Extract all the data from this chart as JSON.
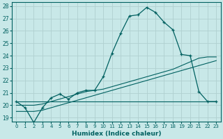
{
  "xlabel": "Humidex (Indice chaleur)",
  "ylabel": "",
  "xlim": [
    -0.5,
    23.5
  ],
  "ylim": [
    18.7,
    28.3
  ],
  "yticks": [
    19,
    20,
    21,
    22,
    23,
    24,
    25,
    26,
    27,
    28
  ],
  "xticks": [
    0,
    1,
    2,
    3,
    4,
    5,
    6,
    7,
    8,
    9,
    10,
    11,
    12,
    13,
    14,
    15,
    16,
    17,
    18,
    19,
    20,
    21,
    22,
    23
  ],
  "background_color": "#c8e8e8",
  "grid_color": "#b0d0d0",
  "line_color": "#006060",
  "main_x": [
    0,
    1,
    2,
    3,
    4,
    5,
    6,
    7,
    8,
    9,
    10,
    11,
    12,
    13,
    14,
    15,
    16,
    17,
    18,
    19,
    20,
    21,
    22,
    23
  ],
  "main_y": [
    20.3,
    19.8,
    18.6,
    19.8,
    20.6,
    20.9,
    20.5,
    21.0,
    21.2,
    21.2,
    22.3,
    24.2,
    25.8,
    27.2,
    27.3,
    27.9,
    27.5,
    26.7,
    26.1,
    24.1,
    24.0,
    21.1,
    20.3,
    20.3
  ],
  "line_flat_x": [
    0,
    3,
    4,
    5,
    6,
    7,
    8,
    9,
    10,
    11,
    12,
    13,
    14,
    15,
    16,
    17,
    18,
    19,
    20,
    21,
    22,
    23
  ],
  "line_flat_y": [
    20.3,
    20.3,
    20.3,
    20.3,
    20.3,
    20.3,
    20.3,
    20.3,
    20.3,
    20.3,
    20.3,
    20.3,
    20.3,
    20.3,
    20.3,
    20.3,
    20.3,
    20.3,
    20.3,
    20.3,
    20.3,
    20.3
  ],
  "line_diag1_x": [
    0,
    1,
    2,
    3,
    4,
    5,
    6,
    7,
    8,
    9,
    10,
    11,
    12,
    13,
    14,
    15,
    16,
    17,
    18,
    19,
    20,
    21,
    22,
    23
  ],
  "line_diag1_y": [
    19.5,
    19.5,
    19.5,
    19.6,
    19.8,
    20.0,
    20.2,
    20.4,
    20.6,
    20.8,
    21.0,
    21.2,
    21.4,
    21.6,
    21.8,
    22.0,
    22.2,
    22.4,
    22.6,
    22.8,
    23.0,
    23.2,
    23.4,
    23.6
  ],
  "line_diag2_x": [
    0,
    1,
    2,
    3,
    4,
    5,
    6,
    7,
    8,
    9,
    10,
    11,
    12,
    13,
    14,
    15,
    16,
    17,
    18,
    19,
    20,
    21,
    22,
    23
  ],
  "line_diag2_y": [
    20.0,
    20.0,
    20.0,
    20.1,
    20.3,
    20.5,
    20.7,
    20.9,
    21.1,
    21.2,
    21.3,
    21.5,
    21.7,
    21.9,
    22.1,
    22.3,
    22.5,
    22.7,
    22.9,
    23.2,
    23.5,
    23.8,
    23.9,
    23.9
  ]
}
